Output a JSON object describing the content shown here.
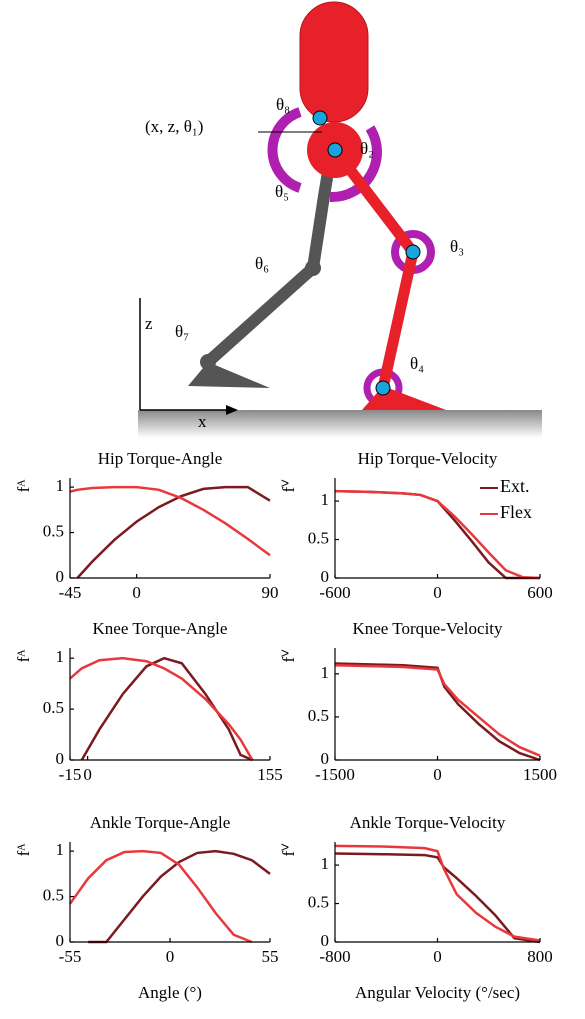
{
  "diagram": {
    "labels": {
      "base": "(x, z, θ₁)",
      "t2": "θ₂",
      "t3": "θ₃",
      "t4": "θ₄",
      "t5": "θ₅",
      "t6": "θ₆",
      "t7": "θ₇",
      "t8": "θ₈",
      "z": "z",
      "x": "x"
    }
  },
  "chart_data": [
    {
      "type": "line",
      "title": "Hip Torque-Angle",
      "ylabel": "fᴬ",
      "xlim": [
        -45,
        90
      ],
      "xticks": [
        -45,
        0,
        90
      ],
      "ylim": [
        0,
        1.1
      ],
      "yticks": [
        0,
        0.5,
        1
      ],
      "x": [
        -45,
        -40,
        -30,
        -15,
        0,
        15,
        30,
        45,
        60,
        75,
        90
      ],
      "series": [
        {
          "name": "Ext.",
          "color": "#7b1a1f",
          "values": [
            null,
            0,
            0.18,
            0.42,
            0.62,
            0.78,
            0.9,
            0.98,
            1,
            1,
            0.85
          ]
        },
        {
          "name": "Flex",
          "color": "#e8383d",
          "values": [
            0.95,
            0.97,
            0.99,
            1,
            1,
            0.97,
            0.88,
            0.75,
            0.6,
            0.43,
            0.25
          ]
        }
      ]
    },
    {
      "type": "line",
      "title": "Hip Torque-Velocity",
      "ylabel": "fⱽ",
      "xlim": [
        -600,
        600
      ],
      "xticks": [
        -600,
        0,
        600
      ],
      "ylim": [
        0,
        1.3
      ],
      "yticks": [
        0,
        0.5,
        1
      ],
      "legend": "upper right",
      "x": [
        -600,
        -400,
        -200,
        -100,
        0,
        100,
        200,
        300,
        400,
        500,
        600
      ],
      "series": [
        {
          "name": "Ext.",
          "color": "#7b1a1f",
          "values": [
            1.13,
            1.12,
            1.1,
            1.08,
            1.0,
            0.75,
            0.48,
            0.2,
            0,
            0,
            0
          ]
        },
        {
          "name": "Flex",
          "color": "#e8383d",
          "values": [
            1.13,
            1.12,
            1.1,
            1.08,
            1.0,
            0.8,
            0.57,
            0.33,
            0.1,
            0.01,
            0
          ]
        }
      ]
    },
    {
      "type": "line",
      "title": "Knee Torque-Angle",
      "ylabel": "fᴬ",
      "xlim": [
        -15,
        155
      ],
      "xticks": [
        -15,
        0,
        155
      ],
      "ylim": [
        0,
        1.1
      ],
      "yticks": [
        0,
        0.5,
        1
      ],
      "x": [
        -15,
        -5,
        10,
        30,
        50,
        65,
        80,
        100,
        120,
        130,
        140,
        155
      ],
      "series": [
        {
          "name": "Ext.",
          "color": "#7b1a1f",
          "values": [
            null,
            0,
            0.3,
            0.65,
            0.92,
            1,
            0.95,
            0.65,
            0.3,
            0.05,
            0,
            null
          ]
        },
        {
          "name": "Flex",
          "color": "#e8383d",
          "values": [
            0.8,
            0.9,
            0.98,
            1,
            0.97,
            0.9,
            0.8,
            0.6,
            0.35,
            0.2,
            0,
            null
          ]
        }
      ]
    },
    {
      "type": "line",
      "title": "Knee Torque-Velocity",
      "ylabel": "fⱽ",
      "xlim": [
        -1500,
        1500
      ],
      "xticks": [
        -1500,
        0,
        1500
      ],
      "ylim": [
        0,
        1.3
      ],
      "yticks": [
        0,
        0.5,
        1
      ],
      "x": [
        -1500,
        -1000,
        -500,
        0,
        100,
        300,
        600,
        900,
        1200,
        1500
      ],
      "series": [
        {
          "name": "Ext.",
          "color": "#7b1a1f",
          "values": [
            1.12,
            1.11,
            1.1,
            1.07,
            0.85,
            0.65,
            0.42,
            0.22,
            0.08,
            0
          ]
        },
        {
          "name": "Flex",
          "color": "#e8383d",
          "values": [
            1.1,
            1.09,
            1.08,
            1.05,
            0.88,
            0.7,
            0.5,
            0.3,
            0.15,
            0.05
          ]
        }
      ]
    },
    {
      "type": "line",
      "title": "Ankle Torque-Angle",
      "ylabel": "fᴬ",
      "xlabel": "Angle (°)",
      "xlim": [
        -55,
        55
      ],
      "xticks": [
        -55,
        0,
        55
      ],
      "ylim": [
        0,
        1.1
      ],
      "yticks": [
        0,
        0.5,
        1
      ],
      "x": [
        -55,
        -45,
        -35,
        -25,
        -15,
        -5,
        5,
        15,
        25,
        35,
        45,
        55
      ],
      "series": [
        {
          "name": "Ext.",
          "color": "#7b1a1f",
          "values": [
            null,
            0,
            0,
            0.25,
            0.5,
            0.72,
            0.88,
            0.98,
            1,
            0.97,
            0.9,
            0.75
          ]
        },
        {
          "name": "Flex",
          "color": "#e8383d",
          "values": [
            0.42,
            0.7,
            0.9,
            0.99,
            1,
            0.98,
            0.85,
            0.6,
            0.32,
            0.08,
            0,
            null
          ]
        }
      ]
    },
    {
      "type": "line",
      "title": "Ankle Torque-Velocity",
      "ylabel": "fⱽ",
      "xlabel": "Angular Velocity (°/sec)",
      "xlim": [
        -800,
        800
      ],
      "xticks": [
        -800,
        0,
        800
      ],
      "ylim": [
        0,
        1.3
      ],
      "yticks": [
        0,
        0.5,
        1
      ],
      "x": [
        -800,
        -400,
        -100,
        0,
        50,
        150,
        300,
        450,
        600,
        800
      ],
      "series": [
        {
          "name": "Ext.",
          "color": "#7b1a1f",
          "values": [
            1.15,
            1.14,
            1.13,
            1.1,
            0.97,
            0.83,
            0.6,
            0.35,
            0.05,
            0
          ]
        },
        {
          "name": "Flex",
          "color": "#e8383d",
          "values": [
            1.25,
            1.24,
            1.22,
            1.18,
            0.95,
            0.62,
            0.38,
            0.2,
            0.07,
            0.02
          ]
        }
      ]
    }
  ]
}
